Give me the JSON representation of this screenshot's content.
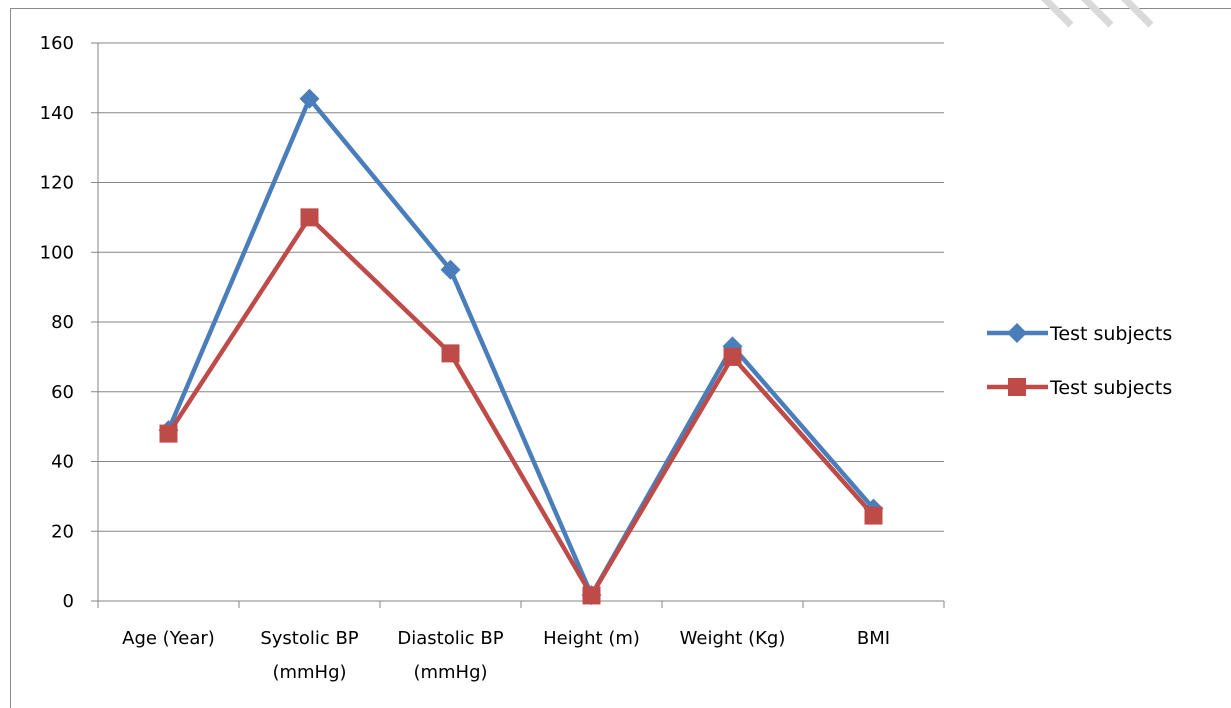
{
  "chart_data": {
    "type": "line",
    "title": "",
    "xlabel": "",
    "ylabel": "",
    "categories": [
      [
        "Age (Year)"
      ],
      [
        "Systolic BP",
        "(mmHg)"
      ],
      [
        "Diastolic BP",
        "(mmHg)"
      ],
      [
        "Height (m)"
      ],
      [
        "Weight (Kg)"
      ],
      [
        "BMI"
      ]
    ],
    "ylim": [
      0,
      160
    ],
    "yticks": [
      0,
      20,
      40,
      60,
      80,
      100,
      120,
      140,
      160
    ],
    "grid": true,
    "legend_position": "right",
    "series": [
      {
        "name": "Test subjects",
        "color": "#4a7ebb",
        "marker": "diamond",
        "values": [
          49,
          144,
          95,
          1.7,
          73,
          26.5
        ]
      },
      {
        "name": "Test subjects",
        "color": "#be4b48",
        "marker": "square",
        "values": [
          48,
          110,
          71,
          1.6,
          70,
          24.5
        ]
      }
    ]
  }
}
